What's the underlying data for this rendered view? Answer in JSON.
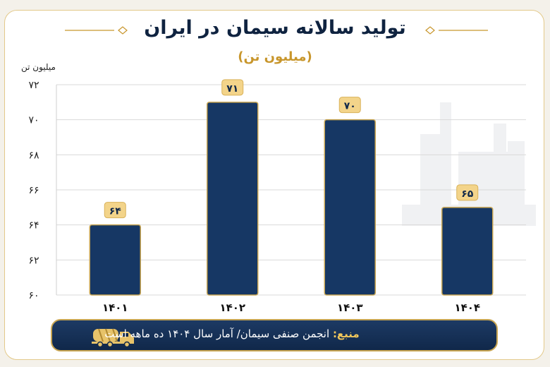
{
  "title": "تولید سالانه سیمان در ایران",
  "subtitle": "(میلیون تن)",
  "source": {
    "label": "منبع:",
    "text": "انجمن صنفی سیمان/ آمار سال ۱۴۰۴ ده ماهه است"
  },
  "chart_data": {
    "type": "bar",
    "title": "تولید سالانه سیمان در ایران",
    "subtitle": "(میلیون تن)",
    "ylabel": "میلیون تن",
    "xlabel": "",
    "categories": [
      "۱۴۰۱",
      "۱۴۰۲",
      "۱۴۰۳",
      "۱۴۰۴"
    ],
    "values": [
      64,
      71,
      70,
      65
    ],
    "value_labels": [
      "۶۴",
      "۷۱",
      "۷۰",
      "۶۵"
    ],
    "ylim": [
      60,
      72
    ],
    "yticks": [
      60,
      62,
      64,
      66,
      68,
      70,
      72
    ],
    "ytick_labels": [
      "۶۰",
      "۶۲",
      "۶۴",
      "۶۶",
      "۶۸",
      "۷۰",
      "۷۲"
    ],
    "grid": true,
    "colors": {
      "bar": "#163764",
      "bar_edge": "#c8a552",
      "label_bg": "#f3d48a",
      "title": "#0f2340",
      "accent": "#c8962c"
    }
  }
}
